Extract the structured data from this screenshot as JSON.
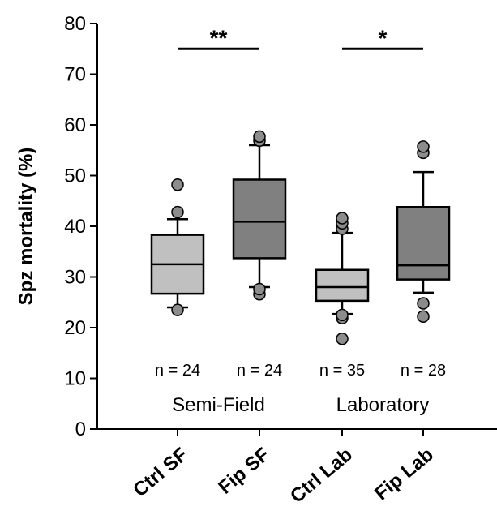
{
  "chart_data": {
    "type": "box",
    "ylabel": "Spz mortality (%)",
    "ylim": [
      0,
      80
    ],
    "yticks": [
      0,
      10,
      20,
      30,
      40,
      50,
      60,
      70,
      80
    ],
    "grid": false,
    "categories": [
      "Ctrl SF",
      "Fip SF",
      "Ctrl Lab",
      "Fip Lab"
    ],
    "boxes": [
      {
        "category": "Ctrl SF",
        "whisker_low": 24,
        "q1": 26.7,
        "median": 32.5,
        "q3": 38.3,
        "whisker_high": 41.4,
        "outliers": [
          23.5,
          42.8,
          48.2
        ],
        "color": "#c0c0c0"
      },
      {
        "category": "Fip SF",
        "whisker_low": 28,
        "q1": 33.7,
        "median": 40.9,
        "q3": 49.2,
        "whisker_high": 56.0,
        "outliers": [
          26.6,
          27.6,
          56.9,
          57.7
        ],
        "color": "#808080"
      },
      {
        "category": "Ctrl Lab",
        "whisker_low": 22.7,
        "q1": 25.3,
        "median": 28.0,
        "q3": 31.4,
        "whisker_high": 38.7,
        "outliers": [
          17.8,
          21.9,
          22.5,
          39.5,
          40.6,
          41.6
        ],
        "color": "#c0c0c0"
      },
      {
        "category": "Fip Lab",
        "whisker_low": 26.9,
        "q1": 29.5,
        "median": 32.3,
        "q3": 43.8,
        "whisker_high": 50.7,
        "outliers": [
          22.2,
          24.8,
          54.5,
          55.7
        ],
        "color": "#808080"
      }
    ],
    "sample_sizes": [
      "n = 24",
      "n = 24",
      "n = 35",
      "n = 28"
    ],
    "group_labels": [
      "Semi-Field",
      "Laboratory"
    ],
    "significance": [
      {
        "between": [
          "Ctrl SF",
          "Fip SF"
        ],
        "label": "**",
        "y": 75
      },
      {
        "between": [
          "Ctrl Lab",
          "Fip Lab"
        ],
        "label": "*",
        "y": 75
      }
    ]
  }
}
